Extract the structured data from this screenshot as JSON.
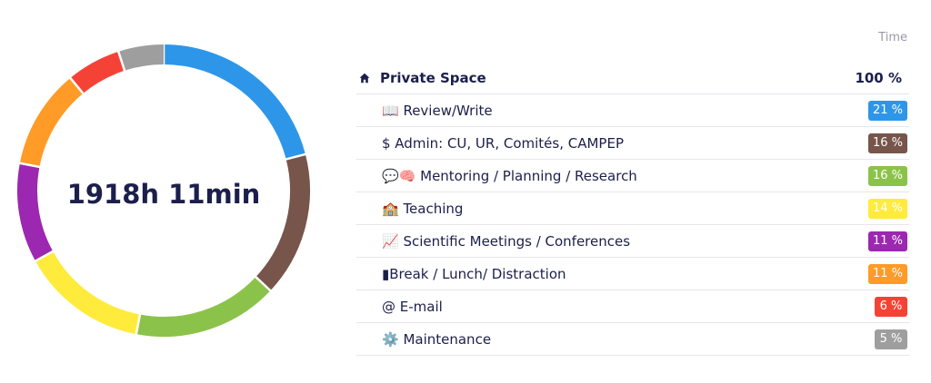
{
  "chart_data": {
    "type": "donut",
    "center_label": "1918h 11min",
    "time_header": "Time",
    "root": {
      "icon": "home-icon",
      "label": "Private Space",
      "percent": "100 %"
    },
    "categories": [
      {
        "icon": "book-emoji",
        "label": "📖 Review/Write",
        "value": 21,
        "percent": "21 %",
        "color": "#2d96e9"
      },
      {
        "icon": "dollar-sign",
        "label": "$ Admin: CU, UR, Comités, CAMPEP",
        "value": 16,
        "percent": "16 %",
        "color": "#77554a"
      },
      {
        "icon": "speech-brain-emoji",
        "label": "💬🧠 Mentoring / Planning / Research",
        "value": 16,
        "percent": "16 %",
        "color": "#8bc34a"
      },
      {
        "icon": "school-emoji",
        "label": "🏫 Teaching",
        "value": 14,
        "percent": "14 %",
        "color": "#ffeb3b"
      },
      {
        "icon": "chart-emoji",
        "label": "📈 Scientific Meetings / Conferences",
        "value": 11,
        "percent": "11 %",
        "color": "#9c27b0"
      },
      {
        "icon": "bar-emoji",
        "label": "▮Break / Lunch/ Distraction",
        "value": 11,
        "percent": "11 %",
        "color": "#ff9b26"
      },
      {
        "icon": "at-sign",
        "label": "@ E-mail",
        "value": 6,
        "percent": "6 %",
        "color": "#f44336"
      },
      {
        "icon": "gear-emoji",
        "label": "⚙️ Maintenance",
        "value": 5,
        "percent": "5 %",
        "color": "#9e9e9e"
      }
    ]
  }
}
